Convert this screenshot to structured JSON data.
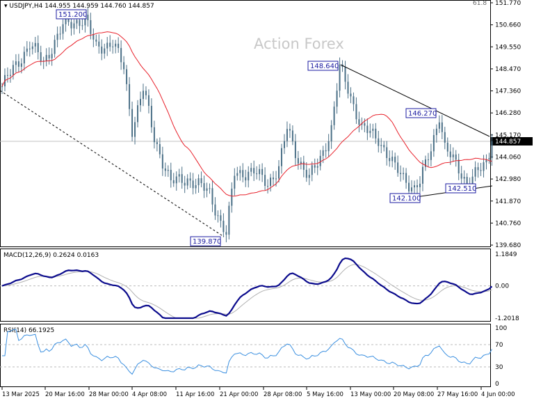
{
  "header": {
    "symbol": "USDJPY,H4",
    "ohlc": "144.955 144.959 144.760 144.857"
  },
  "watermark": "Action Forex",
  "fib_label": "61.8",
  "colors": {
    "candle": "#4a6f86",
    "ma": "#e8202a",
    "macd": "#0a0a8c",
    "signal": "#b0b0b0",
    "rsi": "#3a8fe0",
    "label_border": "#1a1aa0"
  },
  "chart_data": [
    {
      "type": "candlestick",
      "title": "USDJPY,H4",
      "ylim": [
        139.68,
        151.77
      ],
      "y_ticks": [
        "151.770",
        "150.660",
        "149.550",
        "148.470",
        "147.360",
        "146.280",
        "145.170",
        "144.060",
        "142.980",
        "141.870",
        "140.760",
        "139.680"
      ],
      "last_price": "144.857",
      "x_ticks": [
        "13 Mar 2025",
        "20 Mar 16:00",
        "28 Mar 00:00",
        "4 Apr 08:00",
        "11 Apr 16:00",
        "21 Apr 00:00",
        "28 Apr 08:00",
        "5 May 16:00",
        "13 May 00:00",
        "20 May 08:00",
        "27 May 16:00",
        "4 Jun 00:00"
      ],
      "price_path": [
        [
          0,
          147.6
        ],
        [
          10,
          149.7
        ],
        [
          15,
          148.8
        ],
        [
          22,
          150.6
        ],
        [
          30,
          151.0
        ],
        [
          34,
          149.5
        ],
        [
          40,
          149.8
        ],
        [
          44,
          148.5
        ],
        [
          47,
          145.5
        ],
        [
          51,
          147.5
        ],
        [
          55,
          145
        ],
        [
          61,
          142.8
        ],
        [
          67,
          143
        ],
        [
          75,
          142.3
        ],
        [
          79,
          140.8
        ],
        [
          81,
          140.2
        ],
        [
          84,
          143.3
        ],
        [
          91,
          143.3
        ],
        [
          96,
          142.8
        ],
        [
          100,
          143.5
        ],
        [
          103,
          145.5
        ],
        [
          107,
          144
        ],
        [
          111,
          143
        ],
        [
          115,
          144
        ],
        [
          119,
          145.5
        ],
        [
          122,
          148.5
        ],
        [
          125,
          147.5
        ],
        [
          130,
          145.5
        ],
        [
          136,
          145
        ],
        [
          142,
          143.5
        ],
        [
          149,
          142.5
        ],
        [
          151,
          142.8
        ],
        [
          155,
          144.5
        ],
        [
          158,
          146.2
        ],
        [
          160,
          144.5
        ],
        [
          165,
          143.5
        ],
        [
          168,
          142.8
        ],
        [
          172,
          143.3
        ],
        [
          175,
          143.8
        ],
        [
          177,
          144.86
        ]
      ],
      "annotations": [
        "151.200",
        "148.640",
        "146.270",
        "142.100",
        "142.510",
        "139.870"
      ],
      "indicators": {
        "moving_average": "red"
      }
    },
    {
      "type": "line",
      "title": "MACD(12,26,9) 0.2624 0.0163",
      "ylim": [
        -1.2018,
        1.1849
      ],
      "y_ticks": [
        "1.1849",
        "0.00",
        "-1.2018"
      ]
    },
    {
      "type": "line",
      "title": "RSI(14) 66.1925",
      "ylim": [
        0,
        100
      ],
      "y_ticks": [
        "100",
        "70",
        "30",
        "0"
      ]
    }
  ]
}
